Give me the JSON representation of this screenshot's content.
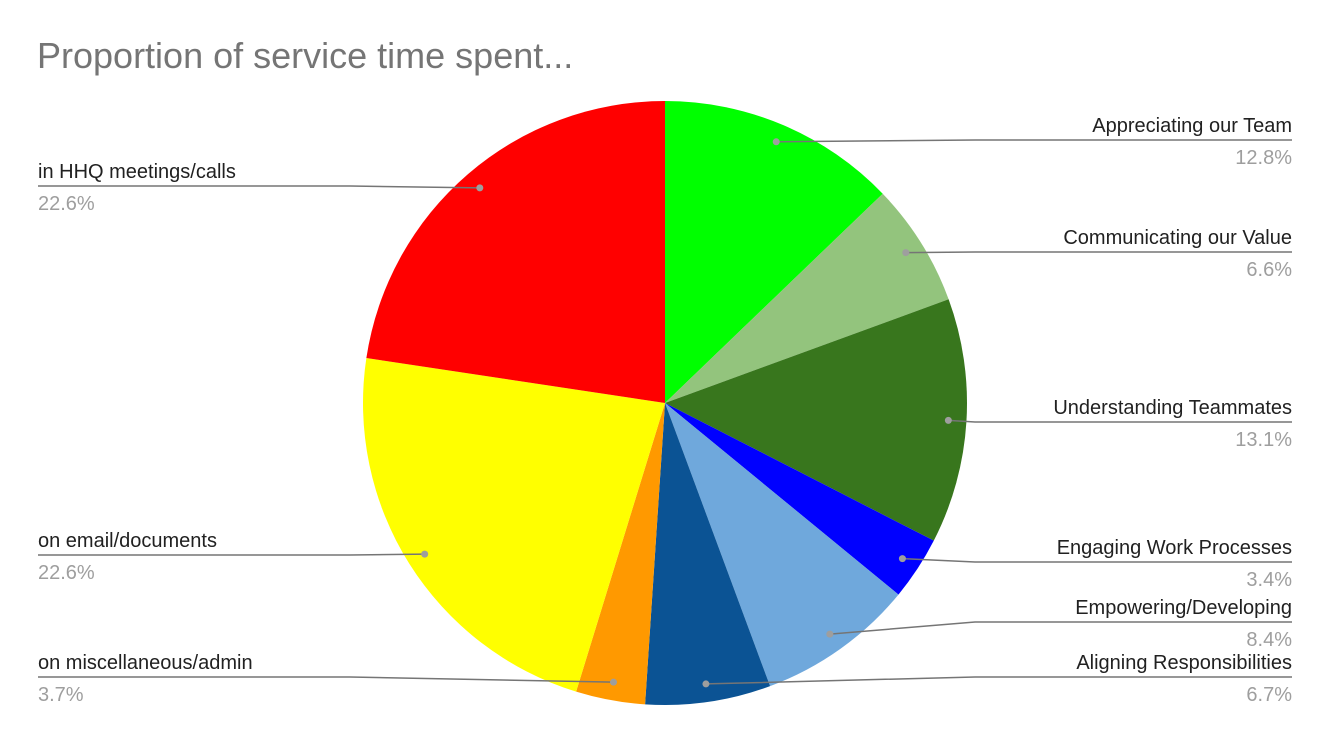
{
  "chart_data": {
    "type": "pie",
    "title": "Proportion of service time spent...",
    "categories": [
      "Appreciating our Team",
      "Communicating our Value",
      "Understanding Teammates",
      "Engaging Work Processes",
      "Empowering/Developing",
      "Aligning Responsibilities",
      "on miscellaneous/admin",
      "on email/documents",
      "in HHQ meetings/calls"
    ],
    "values": [
      12.8,
      6.6,
      13.1,
      3.4,
      8.4,
      6.7,
      3.7,
      22.6,
      22.6
    ],
    "value_labels": [
      "12.8%",
      "6.6%",
      "13.1%",
      "3.4%",
      "8.4%",
      "6.7%",
      "3.7%",
      "22.6%",
      "22.6%"
    ],
    "colors": [
      "#00ff00",
      "#93c47d",
      "#38761d",
      "#0000ff",
      "#6fa8dc",
      "#0b5394",
      "#ff9900",
      "#ffff00",
      "#ff0000"
    ]
  }
}
